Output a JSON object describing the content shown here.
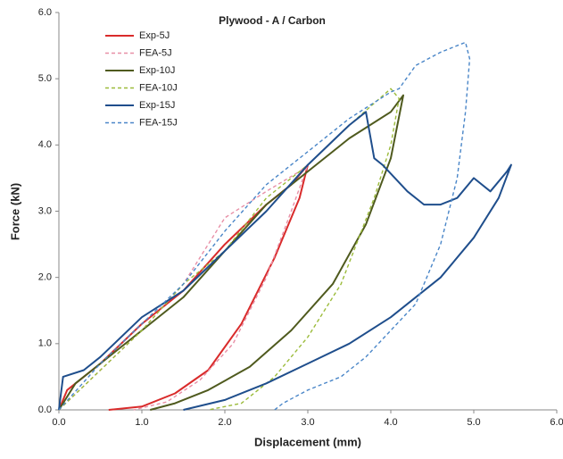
{
  "chart_data": {
    "type": "line",
    "title": "Plywood - A / Carbon",
    "x_label": "Displacement (mm)",
    "y_label": "Force (kN)",
    "xlim": [
      0,
      6
    ],
    "ylim": [
      0,
      6
    ],
    "xticks": [
      {
        "value": 0,
        "label": "0.0"
      },
      {
        "value": 1,
        "label": "1.0"
      },
      {
        "value": 2,
        "label": "2.0"
      },
      {
        "value": 3,
        "label": "3.0"
      },
      {
        "value": 4,
        "label": "4.0"
      },
      {
        "value": 5,
        "label": "5.0"
      },
      {
        "value": 6,
        "label": "6.0"
      }
    ],
    "yticks": [
      {
        "value": 0,
        "label": "0.0"
      },
      {
        "value": 1,
        "label": "1.0"
      },
      {
        "value": 2,
        "label": "2.0"
      },
      {
        "value": 3,
        "label": "3.0"
      },
      {
        "value": 4,
        "label": "4.0"
      },
      {
        "value": 5,
        "label": "5.0"
      },
      {
        "value": 6,
        "label": "6.0"
      }
    ],
    "grid": false,
    "legend": "upper left",
    "series": [
      {
        "name": "Exp-5J",
        "color": "#d92b2b",
        "dashed": false,
        "x": [
          0,
          0.1,
          0.5,
          1.0,
          1.5,
          2.0,
          2.5,
          2.8,
          3.0,
          2.9,
          2.6,
          2.2,
          1.8,
          1.4,
          1.0,
          0.6
        ],
        "values": [
          0,
          0.3,
          0.7,
          1.3,
          1.8,
          2.5,
          3.1,
          3.4,
          3.7,
          3.2,
          2.3,
          1.3,
          0.6,
          0.25,
          0.05,
          0
        ]
      },
      {
        "name": "FEA-5J",
        "color": "#e88fa6",
        "dashed": true,
        "x": [
          0,
          0.5,
          1.0,
          1.5,
          2.0,
          2.5,
          2.9,
          3.0,
          2.8,
          2.5,
          2.1,
          1.7,
          1.3,
          0.9
        ],
        "values": [
          0,
          0.6,
          1.2,
          1.9,
          2.9,
          3.3,
          3.6,
          3.7,
          3.0,
          2.0,
          1.0,
          0.45,
          0.12,
          0
        ]
      },
      {
        "name": "Exp-10J",
        "color": "#4f5a1e",
        "dashed": false,
        "x": [
          0,
          0.2,
          0.5,
          1.0,
          1.5,
          2.0,
          2.5,
          3.0,
          3.5,
          4.0,
          4.15,
          4.0,
          3.7,
          3.3,
          2.8,
          2.3,
          1.8,
          1.4,
          1.1
        ],
        "values": [
          0,
          0.4,
          0.7,
          1.2,
          1.7,
          2.4,
          3.1,
          3.6,
          4.1,
          4.5,
          4.75,
          3.8,
          2.8,
          1.9,
          1.2,
          0.65,
          0.3,
          0.1,
          0
        ]
      },
      {
        "name": "FEA-10J",
        "color": "#9bbb3a",
        "dashed": true,
        "x": [
          0,
          0.5,
          1.0,
          1.5,
          2.0,
          2.5,
          3.0,
          3.5,
          4.0,
          4.1,
          4.0,
          3.8,
          3.4,
          3.0,
          2.6,
          2.2,
          1.8
        ],
        "values": [
          0,
          0.6,
          1.2,
          1.9,
          2.4,
          3.2,
          3.7,
          4.3,
          4.85,
          4.7,
          4.0,
          3.2,
          1.9,
          1.1,
          0.5,
          0.1,
          0
        ]
      },
      {
        "name": "Exp-15J",
        "color": "#1f4e8c",
        "dashed": false,
        "x": [
          0,
          0.05,
          0.3,
          0.5,
          1.0,
          1.5,
          2.0,
          2.5,
          3.0,
          3.5,
          3.7,
          3.8,
          3.9,
          4.2,
          4.4,
          4.6,
          4.8,
          5.0,
          5.2,
          5.4,
          5.45,
          5.3,
          5.0,
          4.6,
          4.0,
          3.5,
          3.0,
          2.5,
          2.0,
          1.5
        ],
        "values": [
          0,
          0.5,
          0.6,
          0.8,
          1.4,
          1.8,
          2.4,
          3.0,
          3.7,
          4.3,
          4.5,
          3.8,
          3.7,
          3.3,
          3.1,
          3.1,
          3.2,
          3.5,
          3.3,
          3.6,
          3.7,
          3.2,
          2.6,
          2.0,
          1.4,
          1.0,
          0.7,
          0.4,
          0.15,
          0
        ]
      },
      {
        "name": "FEA-15J",
        "color": "#4a86c8",
        "dashed": true,
        "x": [
          0,
          0.5,
          1.0,
          1.5,
          2.0,
          2.5,
          3.0,
          3.5,
          4.0,
          4.1,
          4.3,
          4.6,
          4.9,
          4.95,
          4.9,
          4.8,
          4.6,
          4.3,
          4.0,
          3.7,
          3.4,
          3.0,
          2.7,
          2.6
        ],
        "values": [
          0,
          0.7,
          1.3,
          1.9,
          2.7,
          3.4,
          3.9,
          4.4,
          4.8,
          4.85,
          5.2,
          5.4,
          5.55,
          5.3,
          4.5,
          3.5,
          2.5,
          1.6,
          1.2,
          0.8,
          0.5,
          0.3,
          0.1,
          0
        ]
      }
    ]
  }
}
